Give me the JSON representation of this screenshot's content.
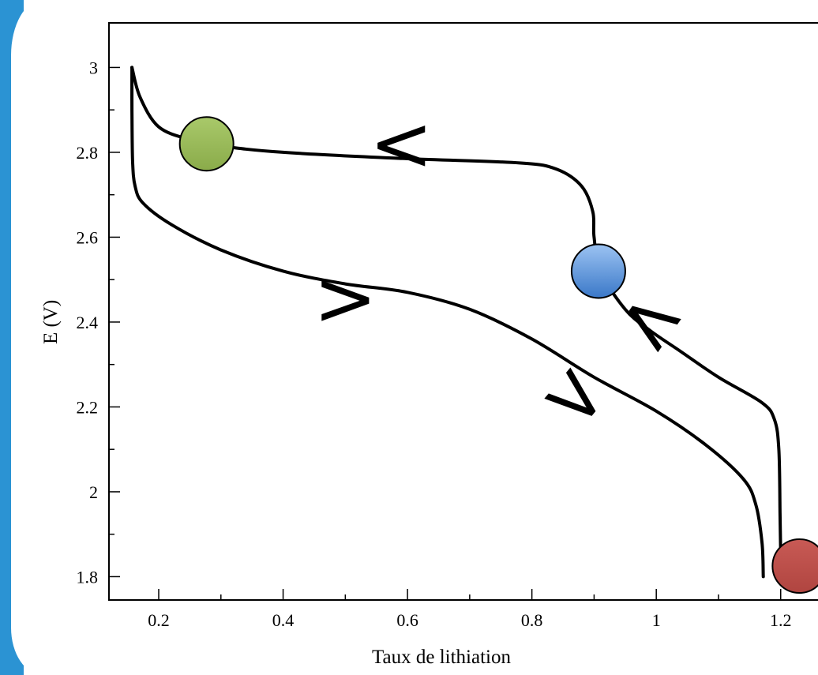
{
  "chart_data": {
    "type": "line",
    "title": "",
    "xlabel": "Taux de lithiation",
    "ylabel": "E (V)",
    "xlim": [
      0.12,
      1.26
    ],
    "ylim": [
      1.745,
      3.105
    ],
    "x_ticks": [
      0.2,
      0.4,
      0.6,
      0.8,
      1,
      1.2
    ],
    "x_tick_labels": [
      "0.2",
      "0.4",
      "0.6",
      "0.8",
      "1",
      "1.2"
    ],
    "y_ticks": [
      1.8,
      2.0,
      2.2,
      2.4,
      2.6,
      2.8,
      3.0
    ],
    "y_tick_labels": [
      "1.8",
      "2",
      "2.2",
      "2.4",
      "2.6",
      "2.8",
      "3"
    ],
    "grid": false,
    "series": [
      {
        "segment": "discharge",
        "color": "#000000",
        "points": [
          [
            0.157,
            3.0
          ],
          [
            0.157,
            2.9
          ],
          [
            0.158,
            2.78
          ],
          [
            0.162,
            2.72
          ],
          [
            0.175,
            2.68
          ],
          [
            0.22,
            2.63
          ],
          [
            0.3,
            2.57
          ],
          [
            0.4,
            2.52
          ],
          [
            0.5,
            2.49
          ],
          [
            0.6,
            2.47
          ],
          [
            0.7,
            2.43
          ],
          [
            0.8,
            2.36
          ],
          [
            0.9,
            2.27
          ],
          [
            1.0,
            2.19
          ],
          [
            1.08,
            2.11
          ],
          [
            1.14,
            2.03
          ],
          [
            1.16,
            1.97
          ],
          [
            1.17,
            1.88
          ],
          [
            1.172,
            1.8
          ]
        ]
      },
      {
        "segment": "charge",
        "color": "#000000",
        "points": [
          [
            1.2,
            1.86
          ],
          [
            1.199,
            1.95
          ],
          [
            1.197,
            2.1
          ],
          [
            1.19,
            2.17
          ],
          [
            1.17,
            2.21
          ],
          [
            1.1,
            2.27
          ],
          [
            1.04,
            2.33
          ],
          [
            0.99,
            2.38
          ],
          [
            0.95,
            2.43
          ],
          [
            0.91,
            2.52
          ],
          [
            0.9,
            2.6
          ],
          [
            0.898,
            2.66
          ],
          [
            0.88,
            2.72
          ],
          [
            0.84,
            2.76
          ],
          [
            0.78,
            2.775
          ],
          [
            0.6,
            2.785
          ],
          [
            0.4,
            2.8
          ],
          [
            0.3,
            2.815
          ],
          [
            0.25,
            2.83
          ],
          [
            0.2,
            2.86
          ],
          [
            0.17,
            2.93
          ],
          [
            0.157,
            3.0
          ]
        ]
      }
    ],
    "markers": [
      {
        "name": "green-marker",
        "x": 0.277,
        "y": 2.82,
        "color": "#9bbb59"
      },
      {
        "name": "blue-marker",
        "x": 0.907,
        "y": 2.52,
        "color": "#4f81bd"
      },
      {
        "name": "red-marker",
        "x": 1.23,
        "y": 1.825,
        "color": "#c0504d"
      }
    ],
    "direction_arrows": [
      {
        "name": "arrow-upper-plateau",
        "glyph": "<",
        "x": 0.59,
        "y": 2.815,
        "rotation": 0
      },
      {
        "name": "arrow-middle",
        "glyph": ">",
        "x": 0.5,
        "y": 2.45,
        "rotation": 0
      },
      {
        "name": "arrow-lower-right",
        "glyph": ">",
        "x": 0.87,
        "y": 2.22,
        "rotation": 40
      },
      {
        "name": "arrow-upper-right",
        "glyph": "<",
        "x": 0.99,
        "y": 2.4,
        "rotation": 35
      }
    ]
  }
}
